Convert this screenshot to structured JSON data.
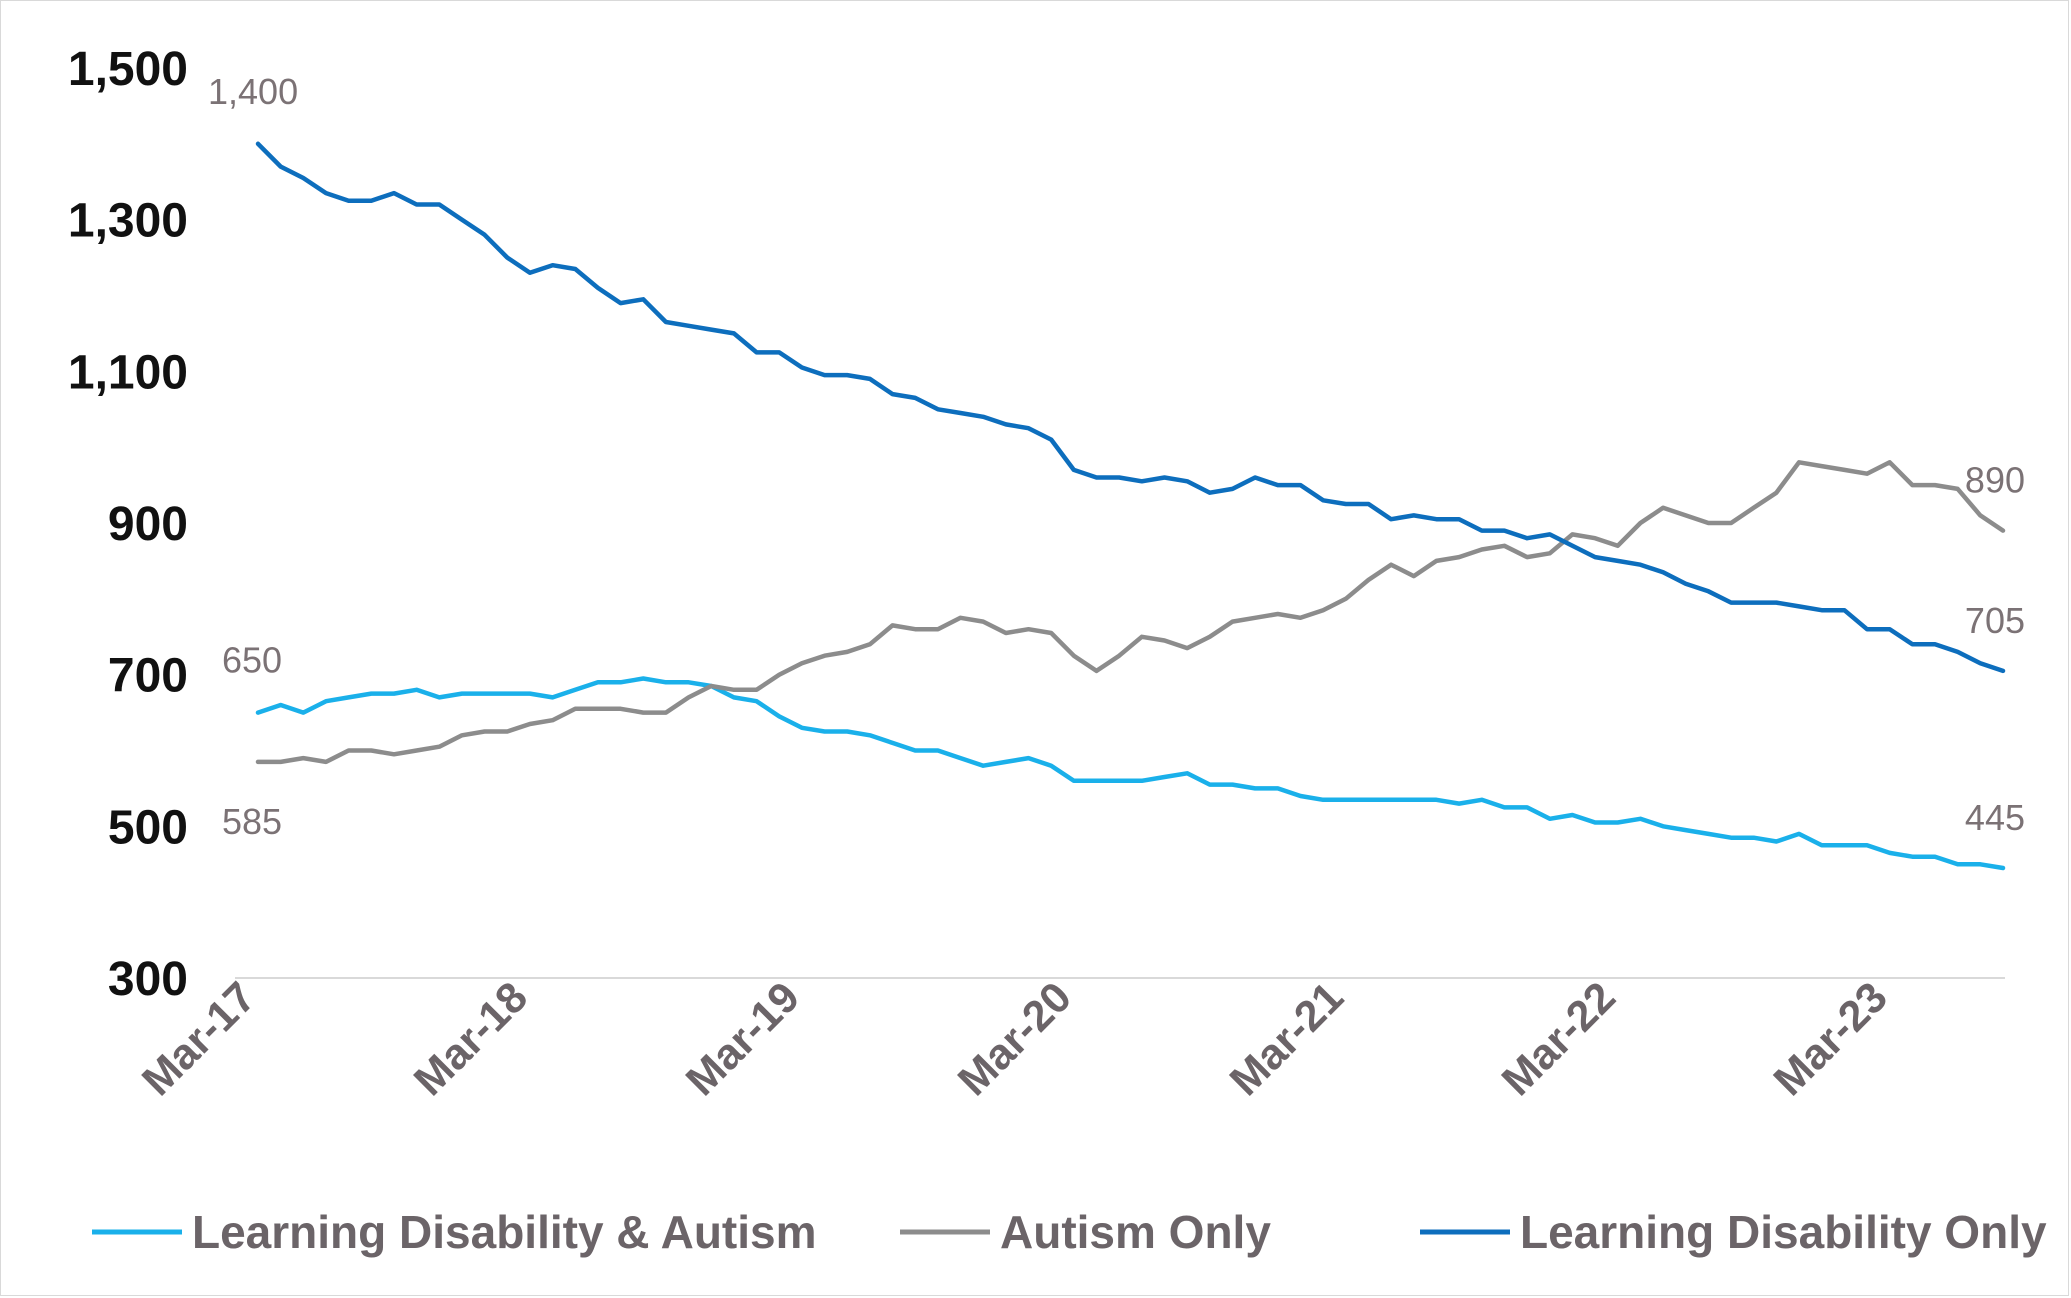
{
  "chart_data": {
    "type": "line",
    "title": "",
    "xlabel": "",
    "ylabel": "",
    "ylim": [
      300,
      1500
    ],
    "yticks": [
      300,
      500,
      700,
      900,
      1100,
      1300,
      1500
    ],
    "ytick_labels": [
      "300",
      "500",
      "700",
      "900",
      "1,100",
      "1,300",
      "1,500"
    ],
    "xtick_labels": [
      "Mar-17",
      "Mar-18",
      "Mar-19",
      "Mar-20",
      "Mar-21",
      "Mar-22",
      "Mar-23"
    ],
    "xtick_index": [
      0,
      12,
      24,
      36,
      48,
      60,
      72
    ],
    "grid": false,
    "legend_position": "bottom",
    "series": [
      {
        "name": "Learning Disability & Autism",
        "color": "#1ab0ea",
        "values": [
          650,
          660,
          650,
          665,
          670,
          675,
          675,
          680,
          670,
          675,
          675,
          675,
          675,
          670,
          680,
          690,
          690,
          695,
          690,
          690,
          685,
          670,
          665,
          645,
          630,
          625,
          625,
          620,
          610,
          600,
          600,
          590,
          580,
          585,
          590,
          580,
          560,
          560,
          560,
          560,
          565,
          570,
          555,
          555,
          550,
          550,
          540,
          535,
          535,
          535,
          535,
          535,
          535,
          530,
          535,
          525,
          525,
          510,
          515,
          505,
          505,
          510,
          500,
          495,
          490,
          485,
          485,
          480,
          490,
          475,
          475,
          475,
          465,
          460,
          460,
          450,
          450,
          445
        ],
        "first_label": "650",
        "last_label": "445"
      },
      {
        "name": "Autism Only",
        "color": "#8c8c8c",
        "values": [
          585,
          585,
          590,
          585,
          600,
          600,
          595,
          600,
          605,
          620,
          625,
          625,
          635,
          640,
          655,
          655,
          655,
          650,
          650,
          670,
          685,
          680,
          680,
          700,
          715,
          725,
          730,
          740,
          765,
          760,
          760,
          775,
          770,
          755,
          760,
          755,
          725,
          705,
          725,
          750,
          745,
          735,
          750,
          770,
          775,
          780,
          775,
          785,
          800,
          825,
          845,
          830,
          850,
          855,
          865,
          870,
          855,
          860,
          885,
          880,
          870,
          900,
          920,
          910,
          900,
          900,
          920,
          940,
          980,
          975,
          970,
          965,
          980,
          950,
          950,
          945,
          910,
          890
        ],
        "first_label": "585",
        "last_label": "890"
      },
      {
        "name": "Learning Disability Only",
        "color": "#0d6ebd",
        "values": [
          1400,
          1370,
          1355,
          1335,
          1325,
          1325,
          1335,
          1320,
          1320,
          1300,
          1280,
          1250,
          1230,
          1240,
          1235,
          1210,
          1190,
          1195,
          1165,
          1160,
          1155,
          1150,
          1125,
          1125,
          1105,
          1095,
          1095,
          1090,
          1070,
          1065,
          1050,
          1045,
          1040,
          1030,
          1025,
          1010,
          970,
          960,
          960,
          955,
          960,
          955,
          940,
          945,
          960,
          950,
          950,
          930,
          925,
          925,
          905,
          910,
          905,
          905,
          890,
          890,
          880,
          885,
          870,
          855,
          850,
          845,
          835,
          820,
          810,
          795,
          795,
          795,
          790,
          785,
          785,
          760,
          760,
          740,
          740,
          730,
          715,
          705
        ],
        "first_label": "1,400",
        "last_label": "705"
      }
    ]
  }
}
